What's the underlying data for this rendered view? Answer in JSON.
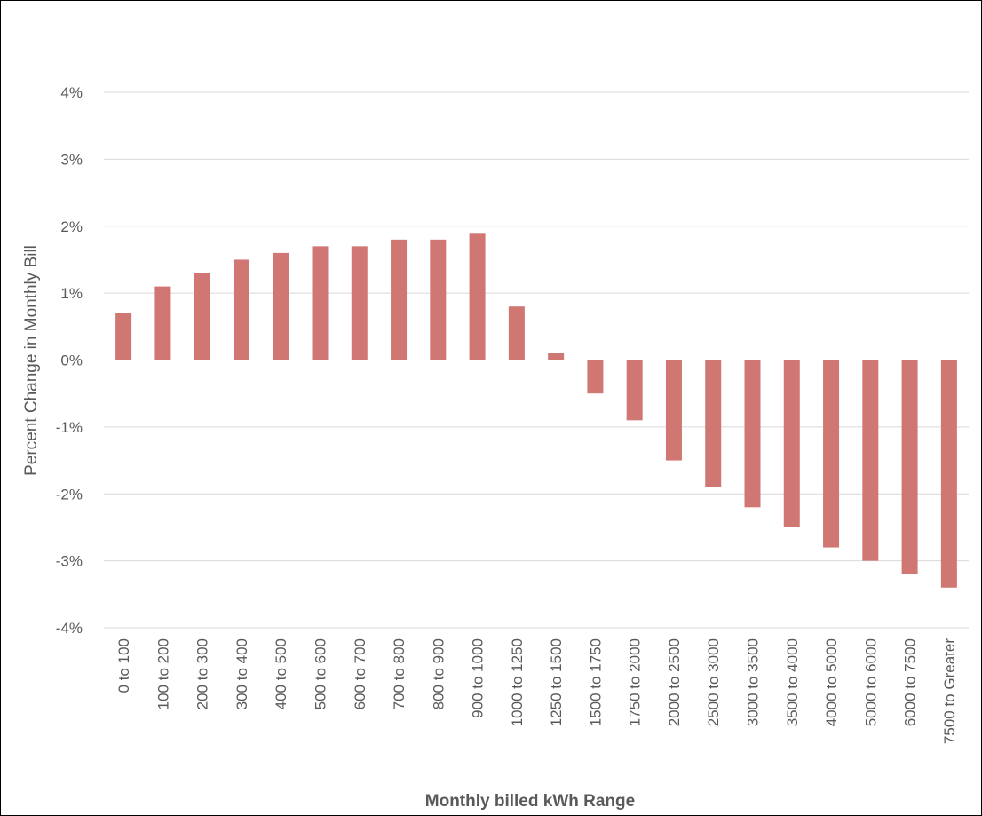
{
  "colors": {
    "bar": "#D07774",
    "grid": "#D9D9D9",
    "axis_text": "#595959",
    "border": "#000000"
  },
  "chart_data": {
    "type": "bar",
    "title": "",
    "xlabel": "Monthly billed kWh Range",
    "ylabel": "Percent Change in Monthly Bill",
    "ylim": [
      -4,
      4
    ],
    "y_ticks": [
      4,
      3,
      2,
      1,
      0,
      -1,
      -2,
      -3,
      -4
    ],
    "y_tick_labels": [
      "4%",
      "3%",
      "2%",
      "1%",
      "0%",
      "-1%",
      "-2%",
      "-3%",
      "-4%"
    ],
    "grid": true,
    "legend": "none",
    "categories": [
      "0 to 100",
      "100 to 200",
      "200 to 300",
      "300 to 400",
      "400 to 500",
      "500 to 600",
      "600 to 700",
      "700 to 800",
      "800 to 900",
      "900 to 1000",
      "1000 to 1250",
      "1250 to 1500",
      "1500 to 1750",
      "1750 to 2000",
      "2000 to 2500",
      "2500 to 3000",
      "3000 to 3500",
      "3500 to 4000",
      "4000 to 5000",
      "5000 to 6000",
      "6000 to 7500",
      "7500 to Greater"
    ],
    "values": [
      0.7,
      1.1,
      1.3,
      1.5,
      1.6,
      1.7,
      1.7,
      1.8,
      1.8,
      1.9,
      0.8,
      0.1,
      -0.5,
      -0.9,
      -1.5,
      -1.9,
      -2.2,
      -2.5,
      -2.8,
      -3.0,
      -3.2,
      -3.4
    ]
  }
}
